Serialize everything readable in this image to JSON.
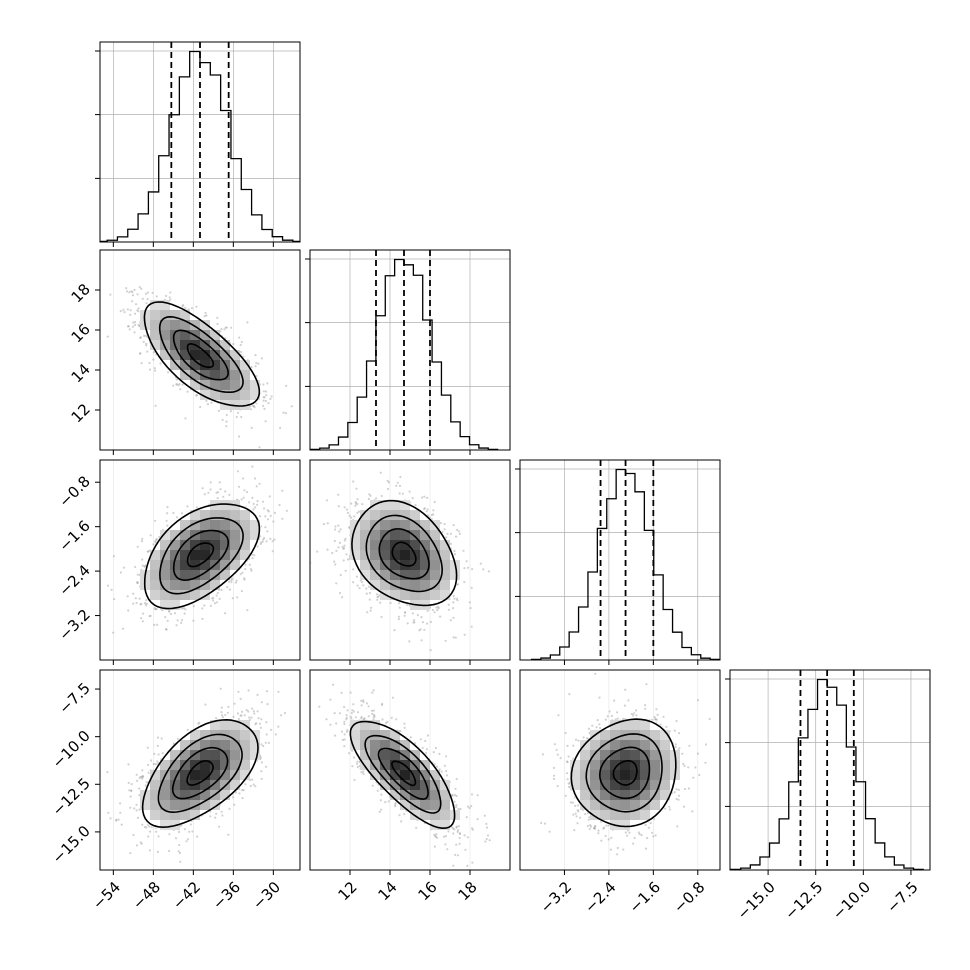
{
  "chart_data": {
    "type": "corner",
    "title": "",
    "parameters": [
      {
        "index": 0,
        "lim": [
          -56,
          -26
        ],
        "ticks": [
          -54,
          -48,
          -42,
          -36,
          -30
        ],
        "tick_labels": [
          "−54",
          "−48",
          "−42",
          "−36",
          "−30"
        ],
        "quantiles": [
          -45.3,
          -41.0,
          -36.7
        ],
        "mean": -41.0,
        "sd": 4.3
      },
      {
        "index": 1,
        "lim": [
          10,
          20
        ],
        "ticks": [
          12,
          14,
          16,
          18
        ],
        "tick_labels": [
          "12",
          "14",
          "16",
          "18"
        ],
        "quantiles": [
          13.3,
          14.7,
          16.0
        ],
        "mean": 14.7,
        "sd": 1.3
      },
      {
        "index": 2,
        "lim": [
          -4.0,
          -0.4
        ],
        "ticks": [
          -3.2,
          -2.4,
          -1.6,
          -0.8
        ],
        "tick_labels": [
          "−3.2",
          "−2.4",
          "−1.6",
          "−0.8"
        ],
        "quantiles": [
          -2.55,
          -2.1,
          -1.6
        ],
        "mean": -2.1,
        "sd": 0.47
      },
      {
        "index": 3,
        "lim": [
          -17,
          -6.5
        ],
        "ticks": [
          -15.0,
          -12.5,
          -10.0,
          -7.5
        ],
        "tick_labels": [
          "−15.0",
          "−12.5",
          "−10.0",
          "−7.5"
        ],
        "quantiles": [
          -13.3,
          -11.9,
          -10.5
        ],
        "mean": -11.9,
        "sd": 1.4
      }
    ],
    "correlations": [
      {
        "pair": [
          0,
          1
        ],
        "r": -0.7
      },
      {
        "pair": [
          0,
          2
        ],
        "r": 0.5
      },
      {
        "pair": [
          0,
          3
        ],
        "r": 0.55
      },
      {
        "pair": [
          1,
          2
        ],
        "r": -0.3
      },
      {
        "pair": [
          1,
          3
        ],
        "r": -0.75
      },
      {
        "pair": [
          2,
          3
        ],
        "r": 0.1
      }
    ],
    "histogram_bins": 20,
    "diagonal": "step-histogram with dashed quantile lines (16%, 50%, 84%)",
    "off_diagonal": "2D density with scatter points, gray shaded bins and black contours",
    "grid": true,
    "colors": {
      "line": "#000000",
      "grid": "#b0b0b0",
      "scatter": "#9a9a9a"
    }
  }
}
